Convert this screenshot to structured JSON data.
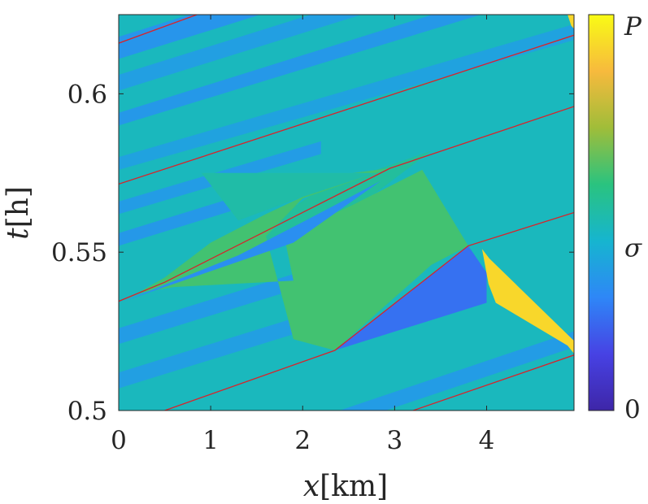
{
  "chart_data": {
    "type": "heatmap",
    "title": "",
    "xlabel_var": "x",
    "xlabel_unit": "[km]",
    "ylabel_var": "t",
    "ylabel_unit": "[h]",
    "xlim": [
      0,
      4.95
    ],
    "ylim": [
      0.5,
      0.625
    ],
    "x_ticks": [
      0,
      1,
      2,
      3,
      4
    ],
    "x_tick_labels": [
      "0",
      "1",
      "2",
      "3",
      "4"
    ],
    "y_ticks": [
      0.5,
      0.55,
      0.6
    ],
    "y_tick_labels": [
      "0.5",
      "0.55",
      "0.6"
    ],
    "colorbar": {
      "colormap": "parula",
      "min_label": "0",
      "mid_label": "σ",
      "max_label": "P",
      "mid_fraction": 0.41,
      "colors": [
        "#3e26a8",
        "#4742e4",
        "#2e87f7",
        "#16b5cf",
        "#2ac37f",
        "#a0bd39",
        "#f7ba3d",
        "#f9fb15"
      ]
    },
    "background_level": 0.46,
    "bands": [
      {
        "points": [
          [
            0,
            0.618
          ],
          [
            4.95,
            0.663
          ],
          [
            4.95,
            0.656
          ],
          [
            0,
            0.611
          ]
        ],
        "level": 0.33
      },
      {
        "points": [
          [
            0,
            0.606
          ],
          [
            4.95,
            0.651
          ],
          [
            4.95,
            0.646
          ],
          [
            0,
            0.601
          ]
        ],
        "level": 0.36
      },
      {
        "points": [
          [
            0,
            0.594
          ],
          [
            4.95,
            0.639
          ],
          [
            4.95,
            0.634
          ],
          [
            0,
            0.59
          ]
        ],
        "level": 0.34
      },
      {
        "points": [
          [
            0,
            0.58
          ],
          [
            4.95,
            0.622
          ],
          [
            4.95,
            0.617
          ],
          [
            0,
            0.576
          ]
        ],
        "level": 0.37
      },
      {
        "points": [
          [
            0,
            0.566
          ],
          [
            2.2,
            0.585
          ],
          [
            2.2,
            0.581
          ],
          [
            0,
            0.562
          ]
        ],
        "level": 0.35
      },
      {
        "points": [
          [
            0,
            0.556
          ],
          [
            2.0,
            0.574
          ],
          [
            2.0,
            0.57
          ],
          [
            0,
            0.552
          ]
        ],
        "level": 0.34
      },
      {
        "points": [
          [
            0,
            0.526
          ],
          [
            2.0,
            0.544
          ],
          [
            2.0,
            0.539
          ],
          [
            0,
            0.521
          ]
        ],
        "level": 0.35
      },
      {
        "points": [
          [
            0,
            0.512
          ],
          [
            2.0,
            0.53
          ],
          [
            2.0,
            0.525
          ],
          [
            0,
            0.507
          ]
        ],
        "level": 0.36
      },
      {
        "points": [
          [
            2.4,
            0.5
          ],
          [
            4.95,
            0.525
          ],
          [
            4.95,
            0.52
          ],
          [
            2.9,
            0.5
          ]
        ],
        "level": 0.35
      },
      {
        "points": [
          [
            0.8,
            0.543
          ],
          [
            2.2,
            0.57
          ],
          [
            3.4,
            0.582
          ],
          [
            2.4,
            0.56
          ]
        ],
        "level": 0.52
      }
    ],
    "regions": [
      {
        "points": [
          [
            1.9,
            0.5225
          ],
          [
            2.35,
            0.519
          ],
          [
            3.4,
            0.546
          ],
          [
            3.8,
            0.552
          ],
          [
            3.3,
            0.576
          ],
          [
            2.55,
            0.565
          ],
          [
            1.8,
            0.555
          ],
          [
            1.9,
            0.541
          ],
          [
            0.6,
            0.539
          ],
          [
            0.2,
            0.537
          ],
          [
            0.5,
            0.542
          ],
          [
            1.0,
            0.553
          ],
          [
            1.6,
            0.562
          ],
          [
            2.55,
            0.575
          ],
          [
            2.95,
            0.5765
          ],
          [
            2.0,
            0.567
          ],
          [
            1.6,
            0.555
          ]
        ],
        "level": 0.6
      },
      {
        "points": [
          [
            0.05,
            0.5345
          ],
          [
            1.3,
            0.549
          ],
          [
            2.1,
            0.561
          ],
          [
            2.85,
            0.5725
          ],
          [
            1.9,
            0.553
          ],
          [
            0.6,
            0.54
          ]
        ],
        "level": 0.31
      },
      {
        "points": [
          [
            2.35,
            0.519
          ],
          [
            3.8,
            0.552
          ],
          [
            4.0,
            0.5435
          ],
          [
            4.0,
            0.534
          ]
        ],
        "level": 0.24
      },
      {
        "points": [
          [
            0.9,
            0.575
          ],
          [
            2.8,
            0.575
          ],
          [
            1.95,
            0.567
          ],
          [
            1.3,
            0.56
          ]
        ],
        "level": 0.5
      },
      {
        "points": [
          [
            3.95,
            0.551
          ],
          [
            4.03,
            0.548
          ],
          [
            4.95,
            0.522
          ],
          [
            4.95,
            0.518
          ],
          [
            4.88,
            0.5205
          ],
          [
            4.1,
            0.534
          ],
          [
            4.02,
            0.54
          ]
        ],
        "level": 0.92
      },
      {
        "points": [
          [
            4.88,
            0.625
          ],
          [
            4.95,
            0.625
          ],
          [
            4.95,
            0.6205
          ],
          [
            4.92,
            0.6215
          ]
        ],
        "level": 0.92
      }
    ],
    "red_lines": [
      [
        [
          0,
          0.616
        ],
        [
          0.85,
          0.625
        ]
      ],
      [
        [
          0,
          0.5715
        ],
        [
          4.95,
          0.6185
        ]
      ],
      [
        [
          0,
          0.5345
        ],
        [
          0.5,
          0.5405
        ],
        [
          2.95,
          0.5765
        ],
        [
          4.95,
          0.596
        ]
      ],
      [
        [
          0.5,
          0.5
        ],
        [
          2.35,
          0.519
        ],
        [
          3.8,
          0.552
        ],
        [
          4.95,
          0.5625
        ]
      ],
      [
        [
          3.2,
          0.5
        ],
        [
          4.95,
          0.5175
        ]
      ]
    ]
  }
}
